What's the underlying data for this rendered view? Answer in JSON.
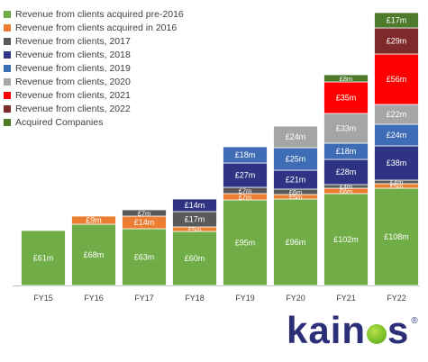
{
  "chart_data": {
    "type": "bar",
    "stacked": true,
    "categories": [
      "FY15",
      "FY16",
      "FY17",
      "FY18",
      "FY19",
      "FY20",
      "FY21",
      "FY22"
    ],
    "unit_prefix": "£",
    "unit_suffix": "m",
    "legend_position": "top-left",
    "grid": false,
    "series": [
      {
        "name": "Revenue from clients acquired pre-2016",
        "color": "#70ad47",
        "values": [
          61,
          68,
          63,
          60,
          95,
          96,
          102,
          108
        ]
      },
      {
        "name": "Revenue from clients acquired in 2016",
        "color": "#ed7d31",
        "values": [
          null,
          9,
          14,
          5,
          7,
          5,
          6,
          5
        ]
      },
      {
        "name": "Revenue from clients, 2017",
        "color": "#595959",
        "values": [
          null,
          null,
          7,
          17,
          7,
          6,
          4,
          4
        ]
      },
      {
        "name": "Revenue from clients, 2018",
        "color": "#2e3483",
        "values": [
          null,
          null,
          null,
          14,
          27,
          21,
          28,
          38
        ]
      },
      {
        "name": "Revenue from clients, 2019",
        "color": "#3f6db5",
        "values": [
          null,
          null,
          null,
          null,
          18,
          25,
          18,
          24
        ]
      },
      {
        "name": "Revenue from clients, 2020",
        "color": "#a5a5a5",
        "values": [
          null,
          null,
          null,
          null,
          null,
          24,
          33,
          22
        ]
      },
      {
        "name": "Revenue from clients, 2021",
        "color": "#ff0000",
        "values": [
          null,
          null,
          null,
          null,
          null,
          null,
          35,
          56
        ]
      },
      {
        "name": "Revenue from clients, 2022",
        "color": "#7f2a2a",
        "values": [
          null,
          null,
          null,
          null,
          null,
          null,
          null,
          29
        ]
      },
      {
        "name": "Acquired Companies",
        "color": "#4e7a2b",
        "values": [
          null,
          null,
          null,
          null,
          null,
          null,
          8,
          17
        ]
      }
    ]
  },
  "logo": {
    "text_left": "kain",
    "text_right": "s",
    "reg_mark": "®"
  }
}
